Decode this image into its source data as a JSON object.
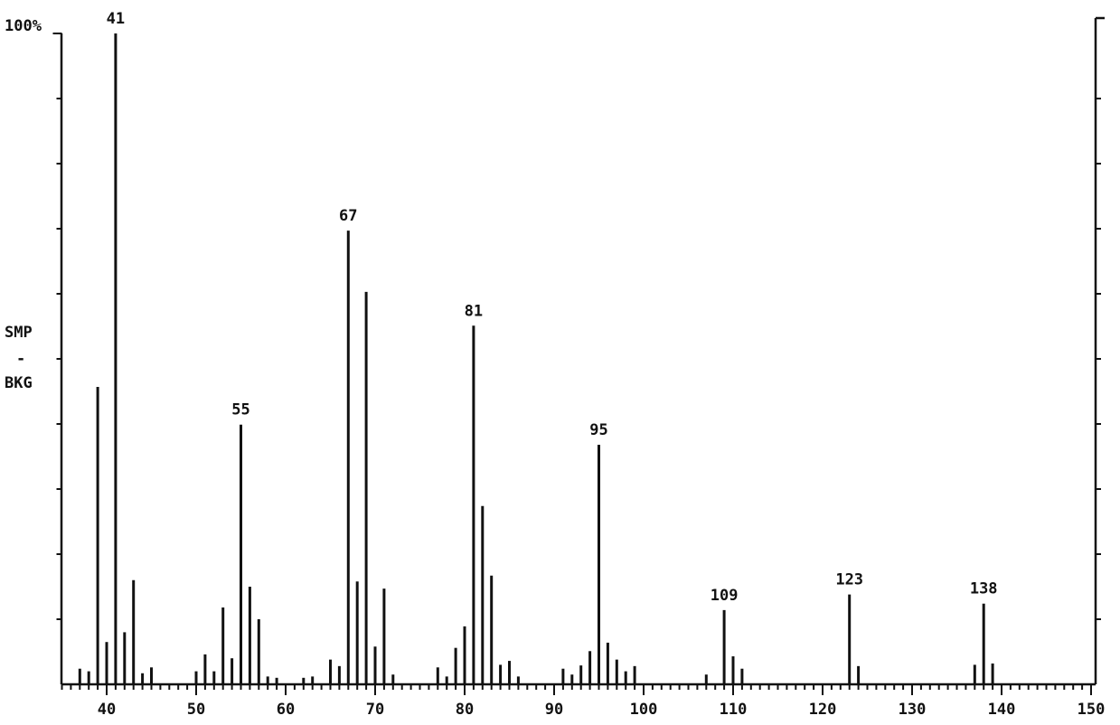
{
  "chart_data": {
    "type": "bar",
    "y_label_top": "SMP",
    "y_label_mid": "-",
    "y_label_bottom": "BKG",
    "x": [
      37,
      38,
      39,
      40,
      41,
      42,
      43,
      44,
      45,
      50,
      51,
      52,
      53,
      54,
      55,
      56,
      57,
      58,
      59,
      62,
      63,
      65,
      66,
      67,
      68,
      69,
      70,
      71,
      72,
      77,
      78,
      79,
      80,
      81,
      82,
      83,
      84,
      85,
      86,
      91,
      92,
      93,
      94,
      95,
      96,
      97,
      98,
      99,
      107,
      109,
      110,
      111,
      123,
      124,
      137,
      138,
      139
    ],
    "values": [
      2.4,
      2,
      45.7,
      6.5,
      100,
      8,
      16,
      1.7,
      2.6,
      2,
      4.6,
      2,
      11.8,
      4,
      39.9,
      15,
      10,
      1.2,
      1,
      1,
      1.2,
      3.8,
      2.8,
      69.7,
      15.8,
      60.3,
      5.8,
      14.7,
      1.5,
      2.6,
      1.2,
      5.6,
      8.9,
      55.1,
      27.4,
      16.7,
      3,
      3.6,
      1.2,
      2.4,
      1.5,
      2.9,
      5.1,
      36.8,
      6.4,
      3.8,
      2,
      2.8,
      1.5,
      11.4,
      4.3,
      2.4,
      13.8,
      2.8,
      3,
      12.4,
      3.2
    ],
    "peak_labels": [
      41,
      55,
      67,
      81,
      95,
      109,
      123,
      138
    ],
    "color": "#111111",
    "xlim": [
      35,
      150
    ],
    "xticks": [
      40,
      50,
      60,
      70,
      80,
      90,
      100,
      110,
      120,
      130,
      140,
      150
    ],
    "ylim": [
      0,
      100
    ],
    "yticks": [
      {
        "value": 100,
        "label": "100%"
      }
    ],
    "yminor_ticks": [
      10,
      20,
      30,
      40,
      50,
      60,
      70,
      80,
      90
    ]
  }
}
